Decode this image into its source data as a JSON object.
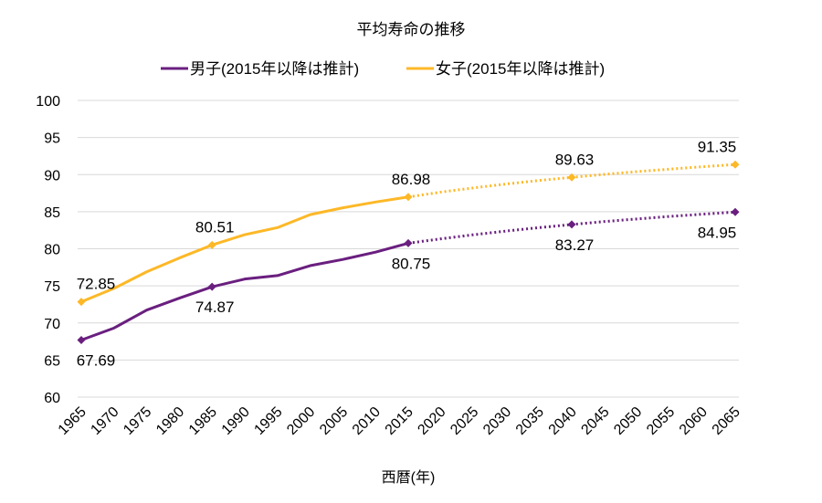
{
  "chart_data": {
    "type": "line",
    "title": "平均寿命の推移",
    "xlabel": "西暦(年)",
    "ylabel": "",
    "ylim": [
      60,
      100
    ],
    "yticks": [
      60,
      65,
      70,
      75,
      80,
      85,
      90,
      95,
      100
    ],
    "xlim": [
      1965,
      2065
    ],
    "xticks": [
      1965,
      1970,
      1975,
      1980,
      1985,
      1990,
      1995,
      2000,
      2005,
      2010,
      2015,
      2020,
      2025,
      2030,
      2035,
      2040,
      2045,
      2050,
      2055,
      2060,
      2065
    ],
    "grid": true,
    "legend_position": "top",
    "series": [
      {
        "name": "男子(2015年以降は推計)",
        "color": "#6A1F7F",
        "x_actual": [
          1965,
          1970,
          1975,
          1980,
          1985,
          1990,
          1995,
          2000,
          2005,
          2010,
          2015
        ],
        "y_actual": [
          67.69,
          69.31,
          71.73,
          73.35,
          74.87,
          75.92,
          76.38,
          77.72,
          78.56,
          79.55,
          80.75
        ],
        "x_projected": [
          2015,
          2020,
          2025,
          2030,
          2035,
          2040,
          2045,
          2050,
          2055,
          2060,
          2065
        ],
        "y_projected": [
          80.75,
          81.34,
          81.89,
          82.39,
          82.85,
          83.27,
          83.67,
          84.02,
          84.36,
          84.66,
          84.95
        ],
        "labeled_points": [
          {
            "x": 1965,
            "y": 67.69,
            "label": "67.69",
            "pos": "below"
          },
          {
            "x": 1985,
            "y": 74.87,
            "label": "74.87",
            "pos": "below"
          },
          {
            "x": 2015,
            "y": 80.75,
            "label": "80.75",
            "pos": "below"
          },
          {
            "x": 2040,
            "y": 83.27,
            "label": "83.27",
            "pos": "below"
          },
          {
            "x": 2065,
            "y": 84.95,
            "label": "84.95",
            "pos": "below"
          }
        ]
      },
      {
        "name": "女子(2015年以降は推計)",
        "color": "#FDB827",
        "x_actual": [
          1965,
          1970,
          1975,
          1980,
          1985,
          1990,
          1995,
          2000,
          2005,
          2010,
          2015
        ],
        "y_actual": [
          72.85,
          74.66,
          76.89,
          78.76,
          80.51,
          81.9,
          82.85,
          84.6,
          85.52,
          86.3,
          86.98
        ],
        "x_projected": [
          2015,
          2020,
          2025,
          2030,
          2035,
          2040,
          2045,
          2050,
          2055,
          2060,
          2065
        ],
        "y_projected": [
          86.98,
          87.64,
          88.21,
          88.73,
          89.21,
          89.63,
          90.03,
          90.4,
          90.73,
          91.06,
          91.35
        ],
        "labeled_points": [
          {
            "x": 1965,
            "y": 72.85,
            "label": "72.85",
            "pos": "above"
          },
          {
            "x": 1985,
            "y": 80.51,
            "label": "80.51",
            "pos": "above"
          },
          {
            "x": 2015,
            "y": 86.98,
            "label": "86.98",
            "pos": "above"
          },
          {
            "x": 2040,
            "y": 89.63,
            "label": "89.63",
            "pos": "above"
          },
          {
            "x": 2065,
            "y": 91.35,
            "label": "91.35",
            "pos": "above"
          }
        ]
      }
    ]
  }
}
